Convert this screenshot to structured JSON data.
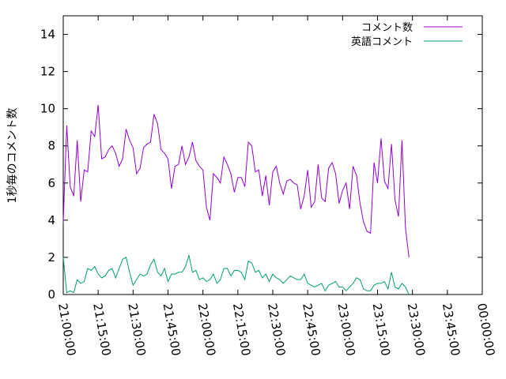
{
  "chart_data": {
    "type": "line",
    "title": "",
    "xlabel": "",
    "ylabel": "1秒毎のコメント数",
    "x_ticks": [
      "21:00:00",
      "21:15:00",
      "21:30:00",
      "21:45:00",
      "22:00:00",
      "22:15:00",
      "22:30:00",
      "22:45:00",
      "23:00:00",
      "23:15:00",
      "23:30:00",
      "23:45:00",
      "00:00:00"
    ],
    "xlim": [
      "21:00:00",
      "00:00:00"
    ],
    "ylim": [
      0,
      15
    ],
    "y_ticks": [
      0,
      2,
      4,
      6,
      8,
      10,
      12,
      14
    ],
    "grid": false,
    "legend_position": "top-right",
    "sample_interval_minutes": 1.5,
    "series": [
      {
        "name": "コメント数",
        "color": "#9400d3",
        "values": [
          3.9,
          9.1,
          5.8,
          5.3,
          8.3,
          5.0,
          6.7,
          6.6,
          8.8,
          8.5,
          10.2,
          7.3,
          7.4,
          7.8,
          8.0,
          7.6,
          6.9,
          7.3,
          8.9,
          8.3,
          7.9,
          6.5,
          6.8,
          7.9,
          8.1,
          8.2,
          9.7,
          9.2,
          7.8,
          7.6,
          7.3,
          5.7,
          6.9,
          7.0,
          8.0,
          7.0,
          7.4,
          8.2,
          7.2,
          6.9,
          6.7,
          4.7,
          4.0,
          6.5,
          6.3,
          6.0,
          7.4,
          7.0,
          6.5,
          5.5,
          6.3,
          6.3,
          5.8,
          8.2,
          8.0,
          6.6,
          6.7,
          5.3,
          6.4,
          4.8,
          6.6,
          6.9,
          6.0,
          5.4,
          6.1,
          6.2,
          6.0,
          5.9,
          4.6,
          5.3,
          6.7,
          4.7,
          5.0,
          7.0,
          5.2,
          5.0,
          6.8,
          7.1,
          6.5,
          4.9,
          5.6,
          6.0,
          4.6,
          6.9,
          6.4,
          4.9,
          3.9,
          3.4,
          3.3,
          7.1,
          6.0,
          8.4,
          6.1,
          5.7,
          8.1,
          5.1,
          4.2,
          8.3,
          3.6,
          2.0
        ]
      },
      {
        "name": "英語コメント",
        "color": "#009e73",
        "values": [
          2.0,
          0.1,
          0.2,
          0.1,
          0.8,
          0.6,
          0.7,
          1.4,
          1.3,
          1.5,
          1.1,
          0.9,
          1.0,
          1.3,
          1.4,
          0.9,
          1.4,
          1.9,
          2.0,
          1.2,
          0.5,
          0.8,
          1.1,
          1.0,
          1.1,
          1.6,
          1.9,
          1.2,
          1.0,
          1.4,
          0.7,
          1.1,
          1.1,
          1.2,
          1.2,
          1.5,
          2.1,
          1.2,
          1.3,
          0.8,
          0.9,
          0.7,
          0.8,
          1.1,
          0.6,
          0.8,
          1.4,
          1.4,
          1.0,
          1.3,
          1.3,
          1.2,
          0.8,
          1.8,
          1.7,
          1.2,
          1.3,
          0.9,
          1.1,
          0.7,
          1.1,
          0.9,
          0.8,
          0.6,
          0.8,
          1.0,
          0.9,
          0.8,
          0.8,
          1.1,
          0.6,
          0.5,
          0.4,
          0.5,
          0.6,
          0.2,
          0.5,
          0.6,
          0.7,
          0.4,
          0.4,
          0.2,
          0.4,
          0.6,
          0.9,
          0.8,
          0.3,
          0.2,
          0.2,
          0.5,
          0.6,
          0.6,
          0.7,
          0.3,
          1.2,
          0.4,
          0.3,
          0.6,
          0.4,
          0.0
        ]
      }
    ]
  }
}
